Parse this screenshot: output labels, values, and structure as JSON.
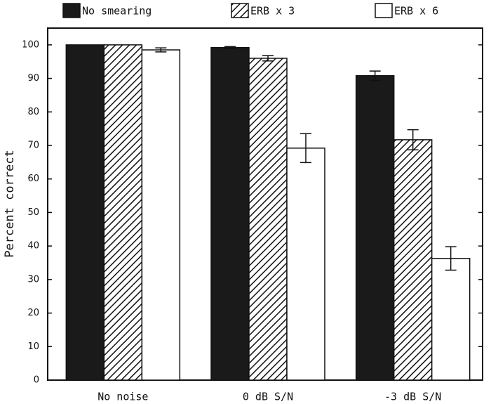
{
  "chart_data": {
    "type": "bar",
    "y_label": "Percent correct",
    "categories": [
      "No noise",
      "0 dB S/N",
      "-3 dB S/N"
    ],
    "series": [
      {
        "name": "No smearing",
        "color": "#1a1a1a",
        "hatch": false,
        "values": [
          100,
          99.2,
          90.8
        ],
        "errors": [
          0,
          0.3,
          1.4
        ]
      },
      {
        "name": "ERB x 3",
        "color": "#ffffff",
        "hatch": true,
        "values": [
          100,
          96.0,
          71.7
        ],
        "errors": [
          0,
          0.8,
          3.0
        ]
      },
      {
        "name": "ERB x 6",
        "color": "#ffffff",
        "hatch": false,
        "values": [
          98.5,
          69.2,
          36.3
        ],
        "errors": [
          0.6,
          4.3,
          3.5
        ]
      }
    ],
    "ylim": [
      0,
      105
    ],
    "yticks": [
      0,
      10,
      20,
      30,
      40,
      50,
      60,
      70,
      80,
      90,
      100
    ],
    "grid": false
  }
}
